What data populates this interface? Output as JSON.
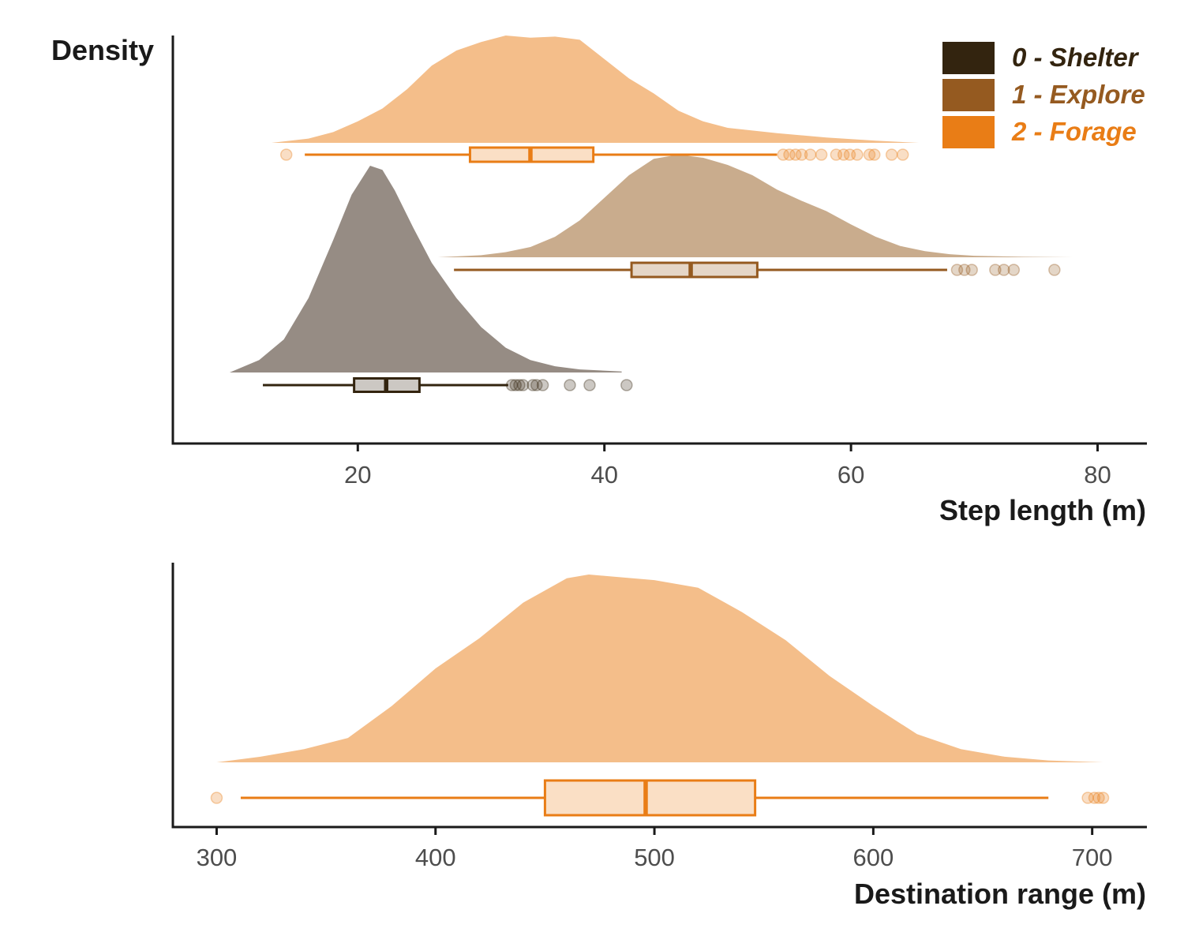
{
  "colors": {
    "shelter": "#33240f",
    "explore": "#955a20",
    "forage": "#e97d16",
    "shelter_fill": "#968c84",
    "explore_fill": "#c9ac8d",
    "forage_fill": "#f4be8a",
    "axis": "#1a1a1a"
  },
  "chart_data": [
    {
      "type": "density-boxplot",
      "ylabel": "Density",
      "xlabel": "Step length (m)",
      "xlim": [
        5,
        84
      ],
      "ticks": [
        20,
        40,
        60,
        80
      ],
      "legend": {
        "position": "top-right",
        "items": [
          "0 - Shelter",
          "1 - Explore",
          "2 - Forage"
        ]
      },
      "series": [
        {
          "key": "shelter",
          "density": {
            "x": [
              9.6,
              12,
              14,
              16,
              18,
              19.5,
              21,
              22,
              23,
              24.5,
              26,
              28,
              30,
              32,
              34,
              36,
              38,
              41.4
            ],
            "y": [
              0.0,
              0.06,
              0.16,
              0.36,
              0.64,
              0.86,
              1.0,
              0.98,
              0.88,
              0.7,
              0.53,
              0.36,
              0.22,
              0.12,
              0.06,
              0.03,
              0.015,
              0.005
            ]
          },
          "box": {
            "whisker_low": 12.3,
            "q1": 19.7,
            "median": 22.3,
            "q3": 25.0,
            "whisker_high": 32.2
          },
          "outliers": [
            32.5,
            32.8,
            33.1,
            33.4,
            34.2,
            34.5,
            35.0,
            37.2,
            38.8,
            41.8
          ]
        },
        {
          "key": "explore",
          "density": {
            "x": [
              26.5,
              30,
              32,
              34,
              36,
              38,
              40,
              42,
              44,
              46,
              48,
              50,
              52,
              54,
              56,
              58,
              60,
              62,
              64,
              66,
              68,
              70,
              74,
              78
            ],
            "y": [
              0.0,
              0.02,
              0.05,
              0.1,
              0.2,
              0.36,
              0.58,
              0.8,
              0.96,
              1.0,
              0.97,
              0.9,
              0.8,
              0.66,
              0.55,
              0.45,
              0.32,
              0.2,
              0.11,
              0.06,
              0.03,
              0.015,
              0.005,
              0.0
            ]
          },
          "box": {
            "whisker_low": 27.8,
            "q1": 42.2,
            "median": 47.0,
            "q3": 52.4,
            "whisker_high": 67.8
          },
          "outliers": [
            68.6,
            69.2,
            69.8,
            71.7,
            72.4,
            73.2,
            76.5
          ]
        },
        {
          "key": "forage",
          "density": {
            "x": [
              13,
              16,
              18,
              20,
              22,
              24,
              26,
              28,
              30,
              32,
              34,
              36,
              38,
              40,
              42,
              44,
              46,
              48,
              50,
              54,
              58,
              62,
              65.5
            ],
            "y": [
              0.0,
              0.04,
              0.1,
              0.2,
              0.32,
              0.5,
              0.72,
              0.86,
              0.94,
              1.0,
              0.98,
              0.99,
              0.96,
              0.78,
              0.6,
              0.46,
              0.3,
              0.2,
              0.14,
              0.09,
              0.05,
              0.02,
              0.0
            ]
          },
          "box": {
            "whisker_low": 15.7,
            "q1": 29.1,
            "median": 34.0,
            "q3": 39.1,
            "whisker_high": 54.0
          },
          "outliers": [
            14.2,
            54.5,
            55.0,
            55.5,
            56.0,
            56.7,
            57.6,
            58.8,
            59.4,
            59.9,
            60.5,
            61.5,
            61.9,
            63.3,
            64.2
          ]
        }
      ]
    },
    {
      "type": "density-boxplot",
      "xlabel": "Destination range (m)",
      "xlim": [
        280,
        725
      ],
      "ticks": [
        300,
        400,
        500,
        600,
        700
      ],
      "series": [
        {
          "key": "forage",
          "density": {
            "x": [
              300,
              320,
              340,
              360,
              380,
              400,
              420,
              440,
              460,
              470,
              480,
              500,
              520,
              540,
              560,
              580,
              600,
              620,
              640,
              660,
              680,
              705
            ],
            "y": [
              0.0,
              0.03,
              0.07,
              0.13,
              0.3,
              0.5,
              0.66,
              0.85,
              0.98,
              1.0,
              0.99,
              0.97,
              0.93,
              0.8,
              0.65,
              0.46,
              0.3,
              0.15,
              0.07,
              0.03,
              0.01,
              0.0
            ]
          },
          "box": {
            "whisker_low": 311,
            "q1": 450,
            "median": 496,
            "q3": 546,
            "whisker_high": 680
          },
          "outliers": [
            300,
            698,
            701,
            703,
            705
          ]
        }
      ]
    }
  ]
}
